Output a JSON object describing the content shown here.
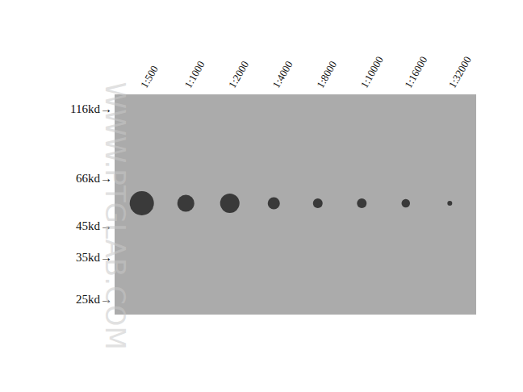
{
  "chart_data": {
    "type": "scatter",
    "categories": [
      "1:500",
      "1:1000",
      "1:2000",
      "1:4000",
      "1:8000",
      "1:10000",
      "1:16000",
      "1:32000"
    ],
    "values": [
      54,
      54,
      54,
      54,
      54,
      54,
      54,
      54
    ],
    "intensity": [
      10,
      7,
      8,
      5,
      4,
      4,
      3.5,
      2
    ],
    "color": "#0a0a0a",
    "marker": "circle",
    "log": "y",
    "ylim": [
      22,
      130
    ],
    "yticks": [
      {
        "value": 25,
        "label": "25kd→"
      },
      {
        "value": 35,
        "label": "35kd→"
      },
      {
        "value": 45,
        "label": "45kd→"
      },
      {
        "value": 66,
        "label": "66kd→"
      },
      {
        "value": 116,
        "label": "116kd→"
      }
    ],
    "grid": false,
    "annotations": [
      {
        "text": "WWW.PTGLAB.COM"
      }
    ]
  }
}
